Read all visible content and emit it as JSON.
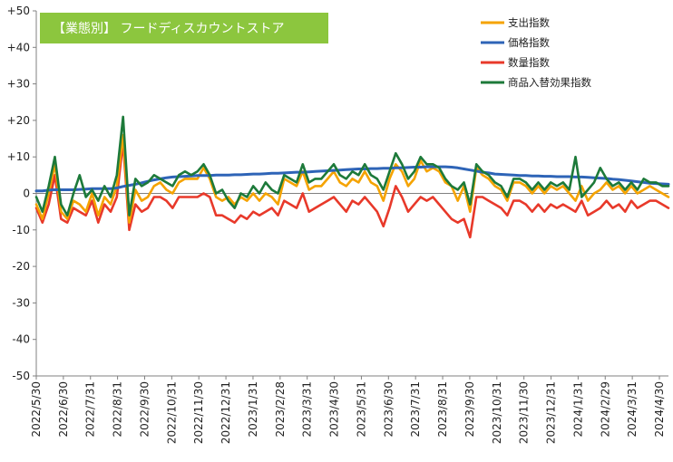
{
  "chart_data": {
    "type": "line",
    "title": "【業態別】 フードディスカウントストア",
    "ylim": [
      -50,
      50
    ],
    "y_ticks": [
      50,
      40,
      30,
      20,
      10,
      0,
      -10,
      -20,
      -30,
      -40,
      -50
    ],
    "y_tick_labels": [
      "+50",
      "+40",
      "+30",
      "+20",
      "+10",
      "0",
      "-10",
      "-20",
      "-30",
      "-40",
      "-50"
    ],
    "x_tick_labels": [
      "2022/5/30",
      "2022/6/30",
      "2022/7/31",
      "2022/8/31",
      "2022/9/30",
      "2022/10/31",
      "2022/11/30",
      "2022/12/31",
      "2023/1/31",
      "2023/2/28",
      "2023/3/31",
      "2023/4/30",
      "2023/5/31",
      "2023/6/30",
      "2023/7/31",
      "2023/8/31",
      "2023/9/30",
      "2023/10/31",
      "2023/11/30",
      "2023/12/31",
      "2024/1/31",
      "2024/2/29",
      "2024/3/31",
      "2024/4/30"
    ],
    "grid": false,
    "legend_position": "top-right",
    "series": [
      {
        "name": "支出指数",
        "color": "#F5A300",
        "values": [
          -3,
          -7,
          0,
          8,
          -5,
          -7,
          -2,
          -3,
          -5,
          0,
          -6,
          -1,
          -3,
          2,
          16,
          -8,
          1,
          -2,
          -1,
          2,
          3,
          1,
          0,
          3,
          4,
          4,
          4,
          7,
          4,
          -1,
          -2,
          -1,
          -3,
          -1,
          -2,
          0,
          -2,
          0,
          -1,
          -3,
          4,
          3,
          2,
          6,
          1,
          2,
          2,
          4,
          6,
          3,
          2,
          4,
          3,
          6,
          3,
          2,
          -2,
          4,
          8,
          6,
          2,
          4,
          9,
          6,
          7,
          6,
          3,
          2,
          -2,
          2,
          -5,
          7,
          5,
          4,
          2,
          1,
          -2,
          3,
          3,
          2,
          0,
          2,
          0,
          2,
          1,
          2,
          0,
          -2,
          2,
          -2,
          0,
          1,
          3,
          1,
          2,
          0,
          2,
          0,
          1,
          2,
          1,
          0,
          -1
        ]
      },
      {
        "name": "価格指数",
        "color": "#2E64B7",
        "values": [
          0.7,
          0.7,
          0.9,
          1.0,
          1.0,
          1.0,
          1.0,
          1.1,
          1.2,
          1.3,
          1.3,
          1.3,
          1.3,
          1.5,
          1.9,
          2.2,
          2.5,
          2.9,
          3.3,
          3.7,
          4.0,
          4.3,
          4.5,
          4.6,
          4.7,
          4.8,
          4.9,
          4.9,
          4.9,
          5.0,
          5.0,
          5.0,
          5.1,
          5.1,
          5.2,
          5.3,
          5.3,
          5.4,
          5.5,
          5.5,
          5.6,
          5.7,
          5.8,
          5.8,
          5.9,
          6.0,
          6.1,
          6.2,
          6.3,
          6.4,
          6.5,
          6.6,
          6.7,
          6.7,
          6.8,
          6.8,
          6.9,
          6.9,
          7.0,
          7.0,
          7.1,
          7.2,
          7.2,
          7.3,
          7.3,
          7.3,
          7.3,
          7.2,
          7.0,
          6.7,
          6.4,
          6.1,
          5.8,
          5.6,
          5.3,
          5.2,
          5.1,
          5.0,
          4.9,
          4.9,
          4.8,
          4.8,
          4.7,
          4.7,
          4.6,
          4.6,
          4.6,
          4.5,
          4.5,
          4.4,
          4.3,
          4.2,
          4.1,
          3.9,
          3.8,
          3.6,
          3.4,
          3.2,
          3.0,
          2.8,
          2.7,
          2.6,
          2.5
        ]
      },
      {
        "name": "数量指数",
        "color": "#E8392A",
        "values": [
          -4,
          -8,
          -3,
          5,
          -7,
          -8,
          -4,
          -5,
          -6,
          -2,
          -8,
          -3,
          -5,
          -1,
          14,
          -10,
          -3,
          -5,
          -4,
          -1,
          -1,
          -2,
          -4,
          -1,
          -1,
          -1,
          -1,
          0,
          -1,
          -6,
          -6,
          -7,
          -8,
          -6,
          -7,
          -5,
          -6,
          -5,
          -4,
          -6,
          -2,
          -3,
          -4,
          0,
          -5,
          -4,
          -3,
          -2,
          -1,
          -3,
          -5,
          -2,
          -3,
          -1,
          -3,
          -5,
          -9,
          -4,
          2,
          -1,
          -5,
          -3,
          -1,
          -2,
          -1,
          -3,
          -5,
          -7,
          -8,
          -7,
          -12,
          -1,
          -1,
          -2,
          -3,
          -4,
          -6,
          -2,
          -2,
          -3,
          -5,
          -3,
          -5,
          -3,
          -4,
          -3,
          -4,
          -5,
          -2,
          -6,
          -5,
          -4,
          -2,
          -4,
          -3,
          -5,
          -2,
          -4,
          -3,
          -2,
          -2,
          -3,
          -4
        ]
      },
      {
        "name": "商品入替効果指数",
        "color": "#1D7A3A",
        "values": [
          -1,
          -5,
          2,
          10,
          -3,
          -6,
          0,
          5,
          -1,
          1,
          -2,
          2,
          -1,
          5,
          21,
          -6,
          4,
          2,
          3,
          5,
          4,
          3,
          2,
          5,
          6,
          5,
          6,
          8,
          5,
          0,
          1,
          -2,
          -4,
          0,
          -1,
          2,
          0,
          3,
          1,
          0,
          5,
          4,
          3,
          8,
          3,
          4,
          4,
          6,
          8,
          5,
          4,
          6,
          5,
          8,
          5,
          4,
          1,
          6,
          11,
          8,
          4,
          6,
          10,
          8,
          8,
          7,
          4,
          2,
          1,
          3,
          -3,
          8,
          6,
          5,
          3,
          2,
          -1,
          4,
          4,
          3,
          1,
          3,
          1,
          3,
          2,
          3,
          1,
          10,
          -1,
          1,
          3,
          7,
          4,
          2,
          3,
          1,
          3,
          1,
          4,
          3,
          3,
          2,
          2
        ]
      }
    ]
  }
}
